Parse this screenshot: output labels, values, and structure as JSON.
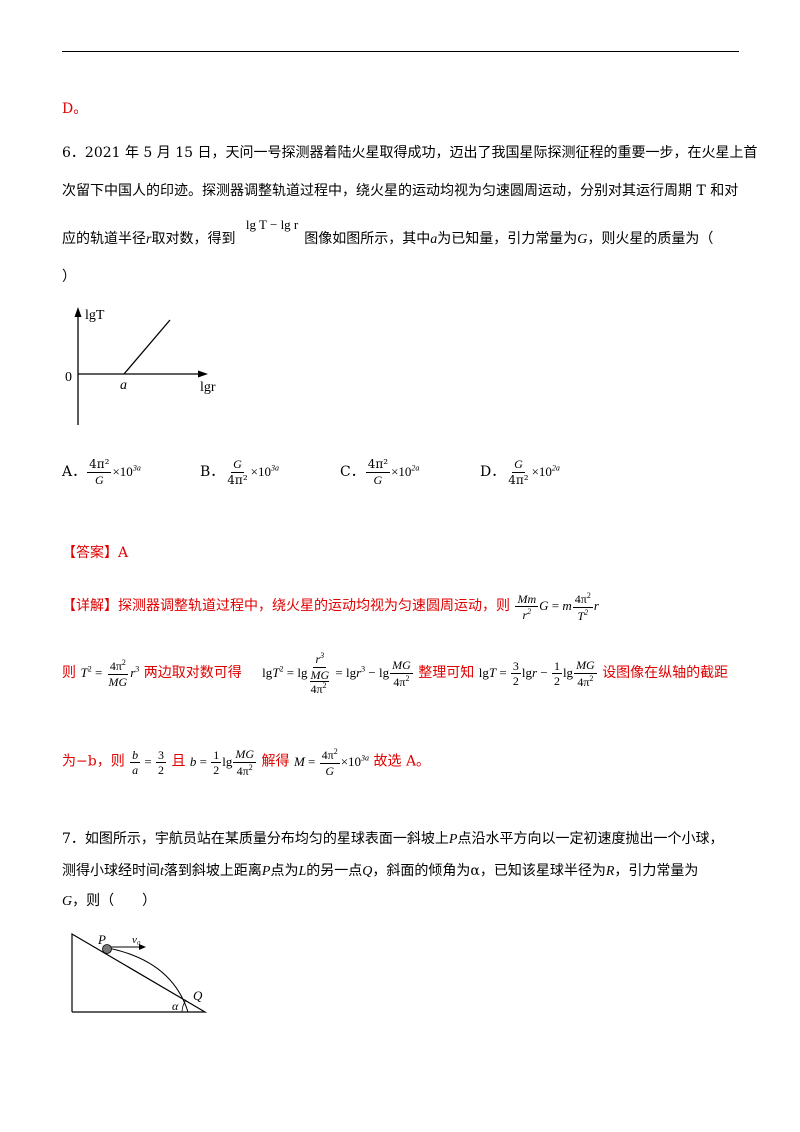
{
  "prev_answer": "D。",
  "q6": {
    "line1": "6．2021 年 5 月 15 日，天问一号探测器着陆火星取得成功，迈出了我国星际探测征程的重要一步，在火星上首",
    "line2": "次留下中国人的印迹。探测器调整轨道过程中，绕火星的运动均视为匀速圆周运动，分别对其运行周期 T 和对",
    "line3_a": "应的轨道半径",
    "line3_r": "r",
    "line3_b": "取对数，得到",
    "line3_expr": "lg T − lg r",
    "line3_c": "图像如图所示，其中",
    "line3_avar": "a",
    "line3_d": "为已知量，引力常量为",
    "line3_G": "G",
    "line3_e": "，则火星的质量为（",
    "line4": "）",
    "graph": {
      "y_label": "lgT",
      "x_label": "lgr",
      "origin": "0",
      "intercept": "a"
    },
    "options": [
      {
        "label": "A．",
        "num": "4π²",
        "den": "G",
        "times": "×10",
        "exp": "3a"
      },
      {
        "label": "B．",
        "num": "G",
        "den": "4π²",
        "times": "×10",
        "exp": "3a"
      },
      {
        "label": "C．",
        "num": "4π²",
        "den": "G",
        "times": "×10",
        "exp": "2a"
      },
      {
        "label": "D．",
        "num": "G",
        "den": "4π²",
        "times": "×10",
        "exp": "2a"
      }
    ]
  },
  "answer": {
    "tag": "【答案】",
    "value": "A"
  },
  "detail": {
    "tag": "【详解】",
    "l1_text": "探测器调整轨道过程中，绕火星的运动均视为匀速圆周运动，则",
    "l2_a": "则",
    "l2_b": "两边取对数可得",
    "l2_c": "整理可知",
    "l2_d": "设图像在纵轴的截距",
    "l3_a": "为−b，则",
    "l3_b": "且",
    "l3_c": "解得",
    "l3_d": "故选 A。"
  },
  "q7": {
    "line1_a": "7．如图所示，宇航员站在某质量分布均匀的星球表面一斜坡上",
    "line1_P": "P",
    "line1_b": "点沿水平方向以一定初速度抛出一个小球，",
    "line2_a": "测得小球经时间",
    "line2_t": "t",
    "line2_b": "落到斜坡上距离",
    "line2_P": "P",
    "line2_c": "点为",
    "line2_L": "L",
    "line2_d": "的另一点",
    "line2_Q": "Q",
    "line2_e": "，斜面的倾角为α，已知该星球半径为",
    "line2_R": "R",
    "line2_f": "，引力常量为",
    "line3_G": "G",
    "line3_b": "，则（　　）",
    "figure": {
      "P": "P",
      "v0": "v₀",
      "Q": "Q",
      "alpha": "α"
    }
  }
}
